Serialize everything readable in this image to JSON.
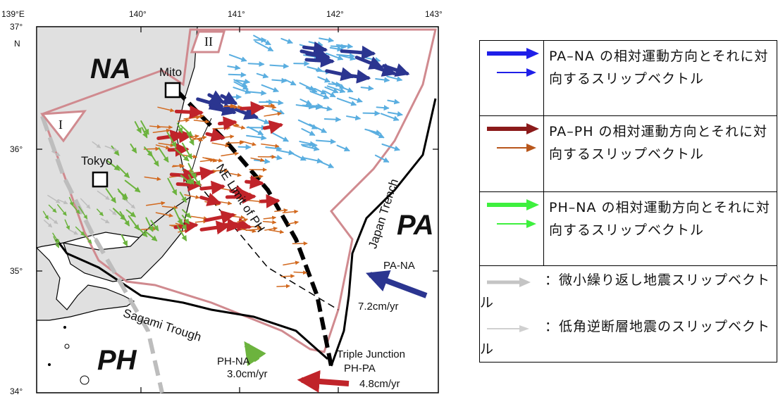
{
  "map": {
    "lon_ticks": [
      "139°E",
      "140°",
      "141°",
      "142°",
      "143°"
    ],
    "lat_ticks": [
      "37°",
      "36°",
      "35°",
      "34°"
    ],
    "lat_hemisphere": "N",
    "plates": {
      "na": "NA",
      "pa": "PA",
      "ph": "PH"
    },
    "cities": {
      "mito": "Mito",
      "tokyo": "Tokyo"
    },
    "regions": {
      "region_1": "I",
      "region_2": "II"
    },
    "features": {
      "ne_limit": "NE Limit of PH",
      "japan_trench": "Japan Trench",
      "sagami_trough": "Sagami Trough",
      "triple_junction": "Triple Junction"
    },
    "motions": {
      "pa_na": {
        "label": "PA-NA",
        "rate": "7.2cm/yr",
        "color": "#2b3590"
      },
      "ph_na": {
        "label": "PH-NA",
        "rate": "3.0cm/yr",
        "color": "#6cb33e"
      },
      "ph_pa": {
        "label": "PH-PA",
        "rate": "4.8cm/yr",
        "color": "#c0242a"
      }
    },
    "colors": {
      "land": "#e0e0e0",
      "boundary": "#d08a8f",
      "slip_blue": "#5aaee0",
      "slip_darkblue": "#2b3590",
      "slip_red": "#c0242a",
      "slip_orange": "#d2691e",
      "slip_green": "#6cb33e",
      "repeater_gray": "#bdbdbd"
    }
  },
  "legend": {
    "rows": [
      {
        "text": "PA–NA の相対運動方向とそれに対向するスリップベクトル",
        "color": "#1f1fe8"
      },
      {
        "text": "PA–PH の相対運動方向とそれに対向するスリップベクトル",
        "color": "#8b1a1a",
        "color2": "#b8561b"
      },
      {
        "text": "PH–NA の相対運動方向とそれに対向するスリップベクトル",
        "color": "#3ef03e"
      }
    ],
    "footer": [
      {
        "text": "：微小繰り返し地震スリップベクトル",
        "color": "#c4c4c4"
      },
      {
        "text": "：低角逆断層地震のスリップベクトル",
        "color": "#d0d0d0"
      }
    ]
  }
}
